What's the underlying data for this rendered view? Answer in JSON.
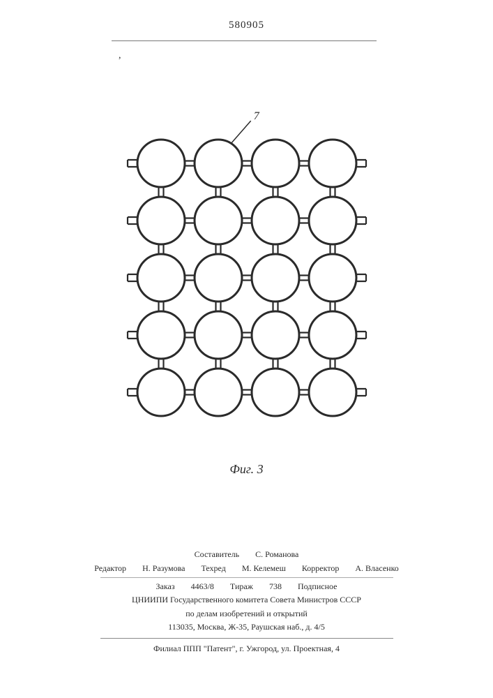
{
  "doc_number": "580905",
  "comma_mark": ",",
  "figure": {
    "rows": 5,
    "cols": 4,
    "circle_r": 34,
    "circle_stroke": "#2a2a2a",
    "circle_stroke_width": 3,
    "circle_fill": "#ffffff",
    "hgap": 82,
    "vgap": 82,
    "connector_len": 10,
    "connector_gap": 7,
    "connector_stroke": "#2a2a2a",
    "connector_stroke_width": 2.2,
    "stub_len": 14,
    "stub_height": 10,
    "leader_label": "7",
    "leader_target": {
      "row": 0,
      "col": 1
    },
    "leader_label_fontsize": 16,
    "caption": "Фиг. 3",
    "svg_padding": 60
  },
  "footer": {
    "compiler_label": "Составитель",
    "compiler_name": "С. Романова",
    "editor_label": "Редактор",
    "editor_name": "Н. Разумова",
    "techred_label": "Техред",
    "techred_name": "М. Келемеш",
    "corrector_label": "Корректор",
    "corrector_name": "А. Власенко",
    "order_label": "Заказ",
    "order_value": "4463/8",
    "tirazh_label": "Тираж",
    "tirazh_value": "738",
    "podpisnoe": "Подписное",
    "org_line1": "ЦНИИПИ Государственного комитета Совета Министров СССР",
    "org_line2": "по делам изобретений и открытий",
    "addr_line": "113035, Москва, Ж-35, Раушская наб., д. 4/5",
    "print_line": "Филиал ППП \"Патент\", г. Ужгород, ул. Проектная, 4"
  }
}
